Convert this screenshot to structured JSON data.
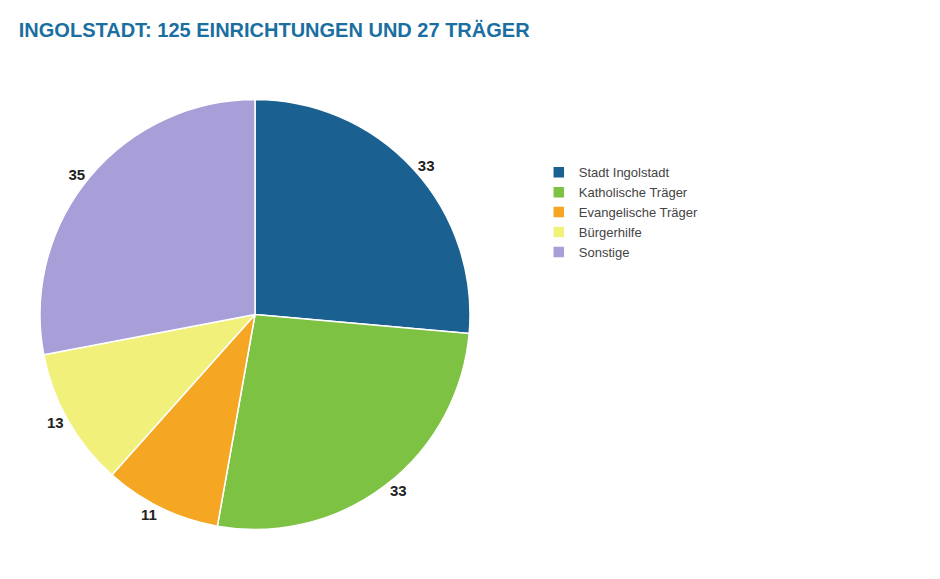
{
  "chart_data": {
    "type": "pie",
    "title": "INGOLSTADT: 125 EINRICHTUNGEN UND 27 TRÄGER",
    "title_color": "#1a6fa0",
    "categories": [
      "Stadt Ingolstadt",
      "Katholische Träger",
      "Evangelische Träger",
      "Bürgerhilfe",
      "Sonstige"
    ],
    "values": [
      33,
      33,
      11,
      13,
      35
    ],
    "colors": [
      "#1a6090",
      "#7dc242",
      "#f5a623",
      "#f0f07a",
      "#a89fd8"
    ],
    "data_labels": true,
    "legend": "right"
  }
}
